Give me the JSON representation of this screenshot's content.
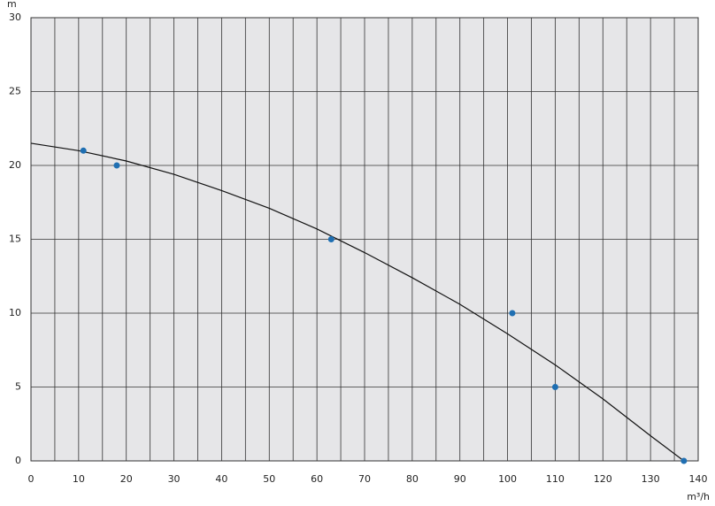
{
  "chart_data": {
    "type": "scatter",
    "y_label": "m",
    "x_label": "m³/h",
    "xlim": [
      0,
      140
    ],
    "xticks": [
      0,
      10,
      20,
      30,
      40,
      50,
      60,
      70,
      80,
      90,
      100,
      110,
      120,
      130,
      140
    ],
    "x_minor_ticks": [
      5,
      15,
      25,
      35,
      45,
      55,
      65,
      75,
      85,
      95,
      105,
      115,
      125,
      135
    ],
    "ylim": [
      0,
      30
    ],
    "yticks": [
      0,
      5,
      10,
      15,
      20,
      25,
      30
    ],
    "grid": true,
    "points": {
      "color": "#1f6fb2",
      "x": [
        11,
        18,
        63,
        101,
        110,
        137
      ],
      "y": [
        21,
        20,
        15,
        10,
        5,
        0
      ]
    },
    "curve": {
      "color": "#111111",
      "x": [
        0,
        10,
        20,
        30,
        40,
        50,
        60,
        70,
        80,
        90,
        100,
        110,
        120,
        130,
        137
      ],
      "y": [
        21.5,
        21.0,
        20.3,
        19.4,
        18.3,
        17.1,
        15.7,
        14.1,
        12.4,
        10.6,
        8.6,
        6.5,
        4.2,
        1.7,
        0
      ]
    }
  }
}
